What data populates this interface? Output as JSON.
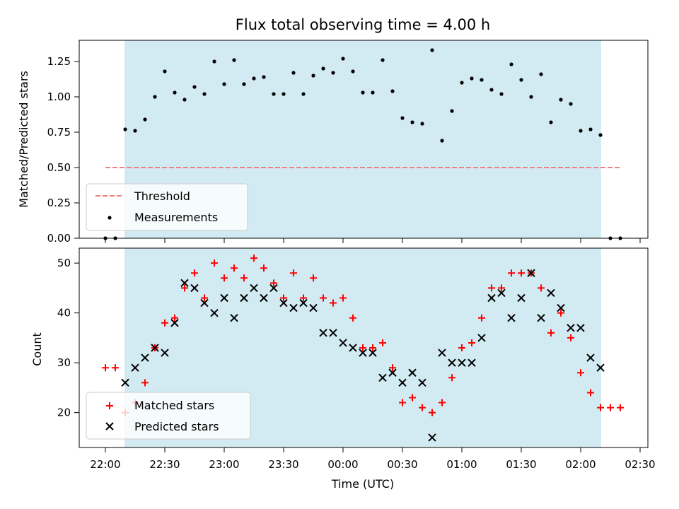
{
  "chart_data": [
    {
      "type": "scatter",
      "title": "Flux total observing time = 4.00 h",
      "ylabel": "Matched/Predicted stars",
      "xlabel": "",
      "ylim": [
        0,
        1.4
      ],
      "yticks": [
        "0.00",
        "0.25",
        "0.50",
        "0.75",
        "1.00",
        "1.25"
      ],
      "shaded_span": [
        "22:10",
        "02:10"
      ],
      "shade_color": "#add8e6",
      "threshold": {
        "name": "Threshold",
        "value": 0.5,
        "x_range": [
          "22:00",
          "02:20"
        ],
        "color": "#f08080"
      },
      "series": [
        {
          "name": "Measurements",
          "color": "#000000",
          "x": [
            "22:00",
            "22:05",
            "22:10",
            "22:15",
            "22:20",
            "22:25",
            "22:30",
            "22:35",
            "22:40",
            "22:45",
            "22:50",
            "22:55",
            "23:00",
            "23:05",
            "23:10",
            "23:15",
            "23:20",
            "23:25",
            "23:30",
            "23:35",
            "23:40",
            "23:45",
            "23:50",
            "23:55",
            "00:00",
            "00:05",
            "00:10",
            "00:15",
            "00:20",
            "00:25",
            "00:30",
            "00:35",
            "00:40",
            "00:45",
            "00:50",
            "00:55",
            "01:00",
            "01:05",
            "01:10",
            "01:15",
            "01:20",
            "01:25",
            "01:30",
            "01:35",
            "01:40",
            "01:45",
            "01:50",
            "01:55",
            "02:00",
            "02:05",
            "02:10",
            "02:15",
            "02:20"
          ],
          "values": [
            0.0,
            0.0,
            0.77,
            0.76,
            0.84,
            1.0,
            1.18,
            1.03,
            0.98,
            1.07,
            1.02,
            1.25,
            1.09,
            1.26,
            1.09,
            1.13,
            1.14,
            1.02,
            1.02,
            1.17,
            1.02,
            1.15,
            1.2,
            1.17,
            1.27,
            1.18,
            1.03,
            1.03,
            1.26,
            1.04,
            0.85,
            0.82,
            0.81,
            1.33,
            0.69,
            0.9,
            1.1,
            1.13,
            1.12,
            1.05,
            1.02,
            1.23,
            1.12,
            1.0,
            1.16,
            0.82,
            0.98,
            0.95,
            0.76,
            0.77,
            0.73,
            0.0,
            0.0
          ]
        }
      ]
    },
    {
      "type": "scatter",
      "title": "",
      "xlabel": "Time (UTC)",
      "ylabel": "Count",
      "ylim": [
        13,
        53
      ],
      "yticks": [
        "20",
        "30",
        "40",
        "50"
      ],
      "xticks": [
        "22:00",
        "22:30",
        "23:00",
        "23:30",
        "00:00",
        "00:30",
        "01:00",
        "01:30",
        "02:00",
        "02:30"
      ],
      "shaded_span": [
        "22:10",
        "02:10"
      ],
      "shade_color": "#add8e6",
      "series": [
        {
          "name": "Matched stars",
          "marker": "plus",
          "color": "#ff0000",
          "x": [
            "22:00",
            "22:05",
            "22:10",
            "22:15",
            "22:20",
            "22:25",
            "22:30",
            "22:35",
            "22:40",
            "22:45",
            "22:50",
            "22:55",
            "23:00",
            "23:05",
            "23:10",
            "23:15",
            "23:20",
            "23:25",
            "23:30",
            "23:35",
            "23:40",
            "23:45",
            "23:50",
            "23:55",
            "00:00",
            "00:05",
            "00:10",
            "00:15",
            "00:20",
            "00:25",
            "00:30",
            "00:35",
            "00:40",
            "00:45",
            "00:50",
            "00:55",
            "01:00",
            "01:05",
            "01:10",
            "01:15",
            "01:20",
            "01:25",
            "01:30",
            "01:35",
            "01:40",
            "01:45",
            "01:50",
            "01:55",
            "02:00",
            "02:05",
            "02:10",
            "02:15",
            "02:20"
          ],
          "values": [
            29,
            29,
            20,
            22,
            26,
            33,
            38,
            39,
            45,
            48,
            43,
            50,
            47,
            49,
            47,
            51,
            49,
            46,
            43,
            48,
            43,
            47,
            43,
            42,
            43,
            39,
            33,
            33,
            34,
            29,
            22,
            23,
            21,
            20,
            22,
            27,
            33,
            34,
            39,
            45,
            45,
            48,
            48,
            48,
            45,
            36,
            40,
            35,
            28,
            24,
            21,
            21,
            21
          ]
        },
        {
          "name": "Predicted stars",
          "marker": "x",
          "color": "#000000",
          "x": [
            "22:10",
            "22:15",
            "22:20",
            "22:25",
            "22:30",
            "22:35",
            "22:40",
            "22:45",
            "22:50",
            "22:55",
            "23:00",
            "23:05",
            "23:10",
            "23:15",
            "23:20",
            "23:25",
            "23:30",
            "23:35",
            "23:40",
            "23:45",
            "23:50",
            "23:55",
            "00:00",
            "00:05",
            "00:10",
            "00:15",
            "00:20",
            "00:25",
            "00:30",
            "00:35",
            "00:40",
            "00:45",
            "00:50",
            "00:55",
            "01:00",
            "01:05",
            "01:10",
            "01:15",
            "01:20",
            "01:25",
            "01:30",
            "01:35",
            "01:40",
            "01:45",
            "01:50",
            "01:55",
            "02:00",
            "02:05",
            "02:10"
          ],
          "values": [
            26,
            29,
            31,
            33,
            32,
            38,
            46,
            45,
            42,
            40,
            43,
            39,
            43,
            45,
            43,
            45,
            42,
            41,
            42,
            41,
            36,
            36,
            34,
            33,
            32,
            32,
            27,
            28,
            26,
            28,
            26,
            15,
            32,
            30,
            30,
            30,
            35,
            43,
            44,
            39,
            43,
            48,
            39,
            44,
            41,
            37,
            37,
            31,
            29
          ]
        }
      ]
    }
  ]
}
